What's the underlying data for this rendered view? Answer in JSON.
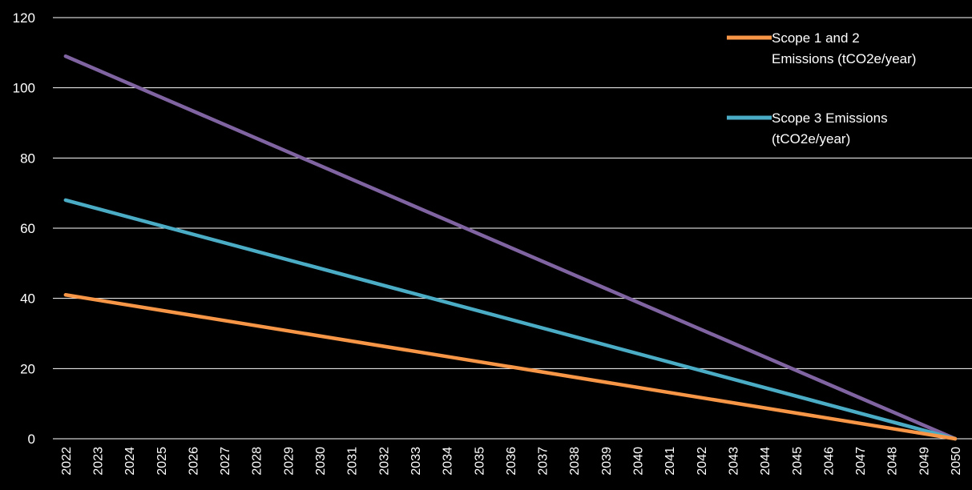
{
  "chart_data": {
    "type": "line",
    "title": "",
    "xlabel": "",
    "ylabel": "",
    "x": [
      2022,
      2023,
      2024,
      2025,
      2026,
      2027,
      2028,
      2029,
      2030,
      2031,
      2032,
      2033,
      2034,
      2035,
      2036,
      2037,
      2038,
      2039,
      2040,
      2041,
      2042,
      2043,
      2044,
      2045,
      2046,
      2047,
      2048,
      2049,
      2050
    ],
    "xticks": [
      "2022",
      "2023",
      "2024",
      "2025",
      "2026",
      "2027",
      "2028",
      "2029",
      "2030",
      "2031",
      "2032",
      "2033",
      "2034",
      "2035",
      "2036",
      "2037",
      "2038",
      "2039",
      "2040",
      "2041",
      "2042",
      "2043",
      "2044",
      "2045",
      "2046",
      "2047",
      "2048",
      "2049",
      "2050"
    ],
    "ylim": [
      0,
      120
    ],
    "yticks": [
      "0",
      "20",
      "40",
      "60",
      "80",
      "100",
      "120"
    ],
    "grid": true,
    "legend_position": "top-right",
    "series": [
      {
        "name": "Scope 1 and 2 Emissions (tCO2e/year)",
        "legend_lines": [
          "Scope 1 and 2",
          "Emissions (tCO2e/year)"
        ],
        "color": "#f79646",
        "start": 41,
        "end": 0
      },
      {
        "name": "Scope 3 Emissions (tCO2e/year)",
        "legend_lines": [
          "Scope 3 Emissions",
          "(tCO2e/year)"
        ],
        "color": "#4bacc6",
        "start": 68,
        "end": 0
      },
      {
        "color": "#8064a2",
        "start": 109,
        "end": 0
      }
    ]
  }
}
